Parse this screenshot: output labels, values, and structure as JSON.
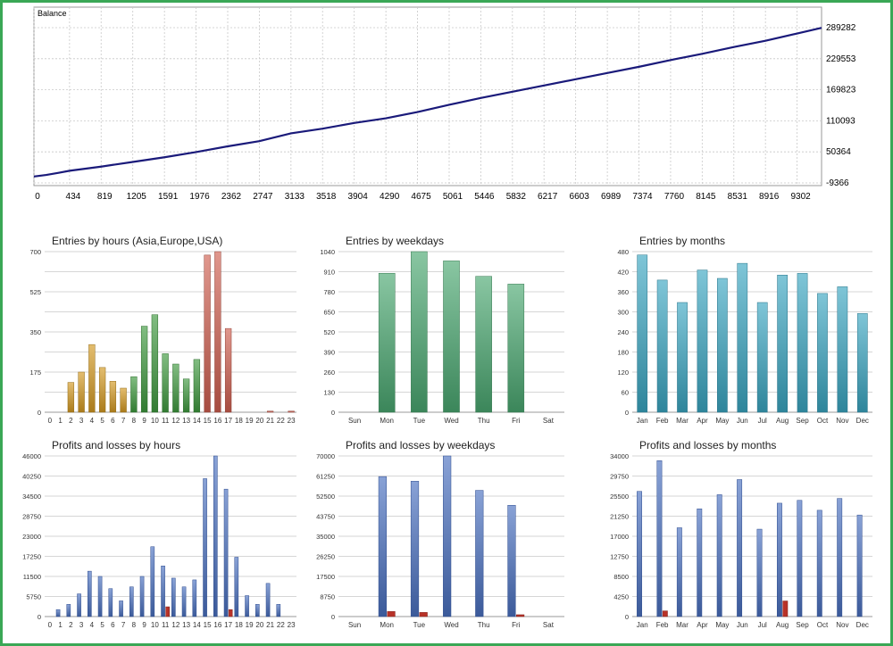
{
  "colors": {
    "frame": "#3aa756",
    "balance_line": "#1a1a7a",
    "grid": "#c8c8c8",
    "loss": "#b83228"
  },
  "chart_data": [
    {
      "id": "balance",
      "type": "line",
      "title": "Balance",
      "xticks": [
        "0",
        "434",
        "819",
        "1205",
        "1591",
        "1976",
        "2362",
        "2747",
        "3133",
        "3518",
        "3904",
        "4290",
        "4675",
        "5061",
        "5446",
        "5832",
        "6217",
        "6603",
        "6989",
        "7374",
        "7760",
        "8145",
        "8531",
        "8916",
        "9302"
      ],
      "yticks": [
        "289282",
        "229553",
        "169823",
        "110093",
        "50364",
        "-9366"
      ],
      "ylim": [
        -9366,
        289282
      ],
      "xlim": [
        0,
        9600
      ],
      "x": [
        0,
        150,
        300,
        434,
        819,
        1205,
        1591,
        1976,
        2362,
        2747,
        3133,
        3518,
        3904,
        4290,
        4675,
        5061,
        5446,
        5832,
        6217,
        6603,
        6989,
        7374,
        7760,
        8145,
        8531,
        8916,
        9302,
        9600
      ],
      "y": [
        3000,
        6000,
        10000,
        14000,
        22000,
        31000,
        40000,
        50000,
        61000,
        71000,
        86000,
        95000,
        106000,
        115000,
        127000,
        141000,
        154000,
        166000,
        178000,
        190000,
        202000,
        214000,
        227000,
        239000,
        252000,
        264000,
        278000,
        289000
      ]
    },
    {
      "id": "entries_hours",
      "type": "bar",
      "title": "Entries by hours (Asia,Europe,USA)",
      "categories": [
        "0",
        "1",
        "2",
        "3",
        "4",
        "5",
        "6",
        "7",
        "8",
        "9",
        "10",
        "11",
        "12",
        "13",
        "14",
        "15",
        "16",
        "17",
        "18",
        "19",
        "20",
        "21",
        "22",
        "23"
      ],
      "values": [
        0,
        0,
        130,
        175,
        295,
        195,
        135,
        105,
        155,
        375,
        425,
        255,
        210,
        145,
        230,
        685,
        700,
        365,
        0,
        0,
        0,
        5,
        0,
        5
      ],
      "yticks": [
        "700",
        "525",
        "350",
        "175",
        "0"
      ],
      "ylim": [
        0,
        700
      ],
      "colors": [
        "#d49a22",
        "#d49a22",
        "#d49a22",
        "#d49a22",
        "#d49a22",
        "#d49a22",
        "#d49a22",
        "#d49a22",
        "#3e9a3e",
        "#3e9a3e",
        "#3e9a3e",
        "#3e9a3e",
        "#3e9a3e",
        "#3e9a3e",
        "#3e9a3e",
        "#cf5f50",
        "#cf5f50",
        "#cf5f50",
        "#cf5f50",
        "#cf5f50",
        "#cf5f50",
        "#cf5f50",
        "#cf5f50",
        "#cf5f50"
      ]
    },
    {
      "id": "entries_weekdays",
      "type": "bar",
      "title": "Entries by weekdays",
      "categories": [
        "Sun",
        "Mon",
        "Tue",
        "Wed",
        "Thu",
        "Fri",
        "Sat"
      ],
      "values": [
        0,
        900,
        1040,
        980,
        880,
        830,
        0
      ],
      "yticks": [
        "1040",
        "910",
        "780",
        "650",
        "520",
        "390",
        "260",
        "130",
        "0"
      ],
      "ylim": [
        0,
        1040
      ],
      "color": "#4aa870"
    },
    {
      "id": "entries_months",
      "type": "bar",
      "title": "Entries by months",
      "categories": [
        "Jan",
        "Feb",
        "Mar",
        "Apr",
        "May",
        "Jun",
        "Jul",
        "Aug",
        "Sep",
        "Oct",
        "Nov",
        "Dec"
      ],
      "values": [
        470,
        395,
        328,
        425,
        400,
        445,
        328,
        410,
        415,
        355,
        375,
        295
      ],
      "yticks": [
        "480",
        "420",
        "360",
        "300",
        "240",
        "180",
        "120",
        "60",
        "0"
      ],
      "ylim": [
        0,
        480
      ],
      "color": "#3aa6c2"
    },
    {
      "id": "pl_hours",
      "type": "bar",
      "title": "Profits and losses by hours",
      "categories": [
        "0",
        "1",
        "2",
        "3",
        "4",
        "5",
        "6",
        "7",
        "8",
        "9",
        "10",
        "11",
        "12",
        "13",
        "14",
        "15",
        "16",
        "17",
        "18",
        "19",
        "20",
        "21",
        "22",
        "23"
      ],
      "series": [
        {
          "values": [
            0,
            2000,
            3500,
            6500,
            13000,
            11500,
            8000,
            4500,
            8500,
            11500,
            20000,
            14500,
            11000,
            8500,
            10500,
            39500,
            46000,
            36500,
            17000,
            6000,
            3500,
            9500,
            3500,
            0
          ]
        },
        {
          "values": [
            0,
            0,
            0,
            0,
            0,
            0,
            0,
            0,
            0,
            0,
            0,
            2800,
            0,
            0,
            0,
            0,
            0,
            2000,
            0,
            0,
            0,
            0,
            0,
            0
          ]
        }
      ],
      "yticks": [
        "46000",
        "40250",
        "34500",
        "28750",
        "23000",
        "17250",
        "11500",
        "5750",
        "0"
      ],
      "ylim": [
        0,
        46000
      ]
    },
    {
      "id": "pl_weekdays",
      "type": "bar",
      "title": "Profits and losses by weekdays",
      "categories": [
        "Sun",
        "Mon",
        "Tue",
        "Wed",
        "Thu",
        "Fri",
        "Sat"
      ],
      "series": [
        {
          "values": [
            0,
            61000,
            59000,
            70000,
            55000,
            48500,
            0
          ]
        },
        {
          "values": [
            0,
            2200,
            1800,
            0,
            0,
            800,
            0
          ]
        }
      ],
      "yticks": [
        "70000",
        "61250",
        "52500",
        "43750",
        "35000",
        "26250",
        "17500",
        "8750",
        "0"
      ],
      "ylim": [
        0,
        70000
      ]
    },
    {
      "id": "pl_months",
      "type": "bar",
      "title": "Profits and losses by months",
      "categories": [
        "Jan",
        "Feb",
        "Mar",
        "Apr",
        "May",
        "Jun",
        "Jul",
        "Aug",
        "Sep",
        "Oct",
        "Nov",
        "Dec"
      ],
      "series": [
        {
          "values": [
            26500,
            33000,
            18800,
            22800,
            25800,
            29000,
            18500,
            24000,
            24600,
            22500,
            25000,
            21500
          ]
        },
        {
          "values": [
            0,
            1200,
            0,
            0,
            0,
            0,
            0,
            3300,
            0,
            0,
            0,
            0
          ]
        }
      ],
      "yticks": [
        "34000",
        "29750",
        "25500",
        "21250",
        "17000",
        "12750",
        "8500",
        "4250",
        "0"
      ],
      "ylim": [
        0,
        34000
      ]
    }
  ]
}
